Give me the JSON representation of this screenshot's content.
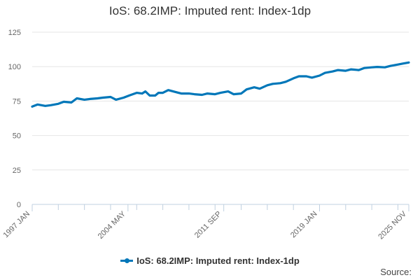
{
  "chart_data": {
    "type": "line",
    "title": "IoS: 68.2IMP: Imputed rent: Index-1dp",
    "xlabel": "",
    "ylabel": "",
    "x_tick_labels": [
      "1997 JAN",
      "2004 MAY",
      "2011 SEP",
      "2019 JAN",
      "2025 NOV"
    ],
    "y_ticks": [
      0,
      25,
      50,
      75,
      100,
      125
    ],
    "ylim": [
      0,
      125
    ],
    "grid": "horizontal",
    "legend_position": "bottom",
    "source_label": "Source:",
    "series": [
      {
        "name": "IoS: 68.2IMP: Imputed rent: Index-1dp",
        "color": "#0077b9",
        "points": [
          [
            "1997-01",
            71.0
          ],
          [
            "1997-06",
            72.5
          ],
          [
            "1998-01",
            71.5
          ],
          [
            "1998-06",
            72.0
          ],
          [
            "1999-01",
            73.0
          ],
          [
            "1999-06",
            74.5
          ],
          [
            "2000-01",
            74.0
          ],
          [
            "2000-06",
            77.0
          ],
          [
            "2001-01",
            76.0
          ],
          [
            "2001-06",
            76.5
          ],
          [
            "2002-01",
            77.0
          ],
          [
            "2002-06",
            77.5
          ],
          [
            "2003-01",
            78.0
          ],
          [
            "2003-06",
            76.0
          ],
          [
            "2004-01",
            77.5
          ],
          [
            "2004-06",
            79.0
          ],
          [
            "2005-01",
            81.0
          ],
          [
            "2005-06",
            80.5
          ],
          [
            "2005-09",
            82.0
          ],
          [
            "2006-01",
            79.0
          ],
          [
            "2006-06",
            79.0
          ],
          [
            "2006-09",
            81.0
          ],
          [
            "2007-01",
            81.0
          ],
          [
            "2007-06",
            83.0
          ],
          [
            "2008-01",
            81.5
          ],
          [
            "2008-06",
            80.5
          ],
          [
            "2009-01",
            80.5
          ],
          [
            "2009-06",
            80.0
          ],
          [
            "2010-01",
            79.5
          ],
          [
            "2010-06",
            80.5
          ],
          [
            "2011-01",
            80.0
          ],
          [
            "2011-06",
            81.0
          ],
          [
            "2012-01",
            82.0
          ],
          [
            "2012-06",
            80.0
          ],
          [
            "2013-01",
            80.5
          ],
          [
            "2013-06",
            83.5
          ],
          [
            "2014-01",
            85.0
          ],
          [
            "2014-06",
            84.0
          ],
          [
            "2015-01",
            86.5
          ],
          [
            "2015-06",
            87.5
          ],
          [
            "2016-01",
            88.0
          ],
          [
            "2016-06",
            89.0
          ],
          [
            "2017-01",
            91.5
          ],
          [
            "2017-06",
            93.0
          ],
          [
            "2018-01",
            93.0
          ],
          [
            "2018-06",
            92.0
          ],
          [
            "2019-01",
            93.5
          ],
          [
            "2019-06",
            95.5
          ],
          [
            "2020-01",
            96.5
          ],
          [
            "2020-06",
            97.5
          ],
          [
            "2021-01",
            97.0
          ],
          [
            "2021-06",
            98.0
          ],
          [
            "2022-01",
            97.5
          ],
          [
            "2022-06",
            99.0
          ],
          [
            "2023-01",
            99.5
          ],
          [
            "2023-06",
            99.8
          ],
          [
            "2024-01",
            99.5
          ],
          [
            "2024-06",
            100.5
          ],
          [
            "2025-01",
            101.5
          ],
          [
            "2025-06",
            102.3
          ],
          [
            "2025-11",
            103.0
          ]
        ]
      }
    ]
  }
}
